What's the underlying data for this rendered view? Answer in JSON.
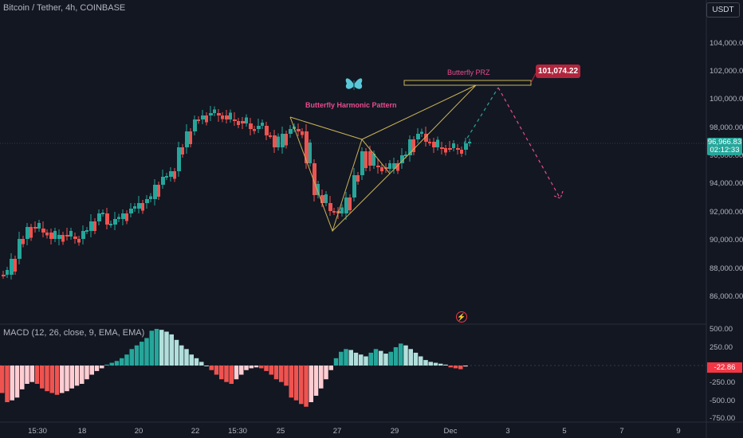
{
  "header": {
    "title": "Bitcoin / Tether, 4h, COINBASE",
    "currency_button": "USDT"
  },
  "price_axis": [
    "104,000.00",
    "102,000.00",
    "100,000.00",
    "98,000.00",
    "96,000.00",
    "94,000.00",
    "92,000.00",
    "90,000.00",
    "88,000.00",
    "86,000.00"
  ],
  "last_price": {
    "value": "96,966.83",
    "countdown": "02:12:33"
  },
  "annotations": {
    "pattern_label": "Butterfly Harmonic Pattern",
    "prz_label": "Butterfly PRZ",
    "prz_price": "101,074.22",
    "butterfly_icon": "butterfly-icon",
    "bolt_icon": "lightning-icon"
  },
  "macd": {
    "title": "MACD (12, 26, close, 9, EMA, EMA)",
    "axis": [
      "500.00",
      "250.00",
      "-250.00",
      "-500.00",
      "-750.00"
    ],
    "current": "-22.86"
  },
  "time_axis": [
    "15:30",
    "18",
    "20",
    "22",
    "15:30",
    "25",
    "27",
    "29",
    "Dec",
    "3",
    "5",
    "7",
    "9"
  ],
  "colors": {
    "up": "#26a69a",
    "down": "#ef5350",
    "pattern": "#c9b458",
    "prz": "#e84b8e",
    "bg": "#131722"
  }
}
